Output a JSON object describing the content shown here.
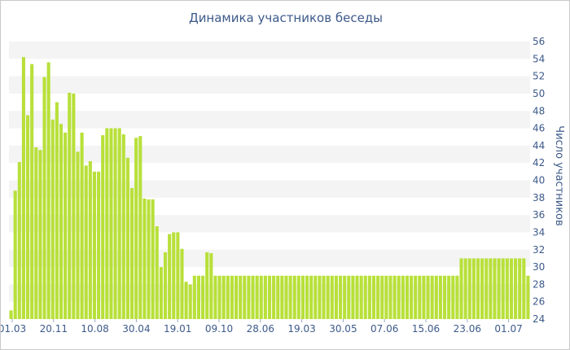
{
  "chart_data": {
    "type": "bar",
    "title": "Динамика участников беседы",
    "ylabel": "Число участников",
    "ylim": [
      24,
      56
    ],
    "y_ticks": [
      24,
      26,
      28,
      30,
      32,
      34,
      36,
      38,
      40,
      42,
      44,
      46,
      48,
      50,
      52,
      54,
      56
    ],
    "x_tick_labels": [
      "01.03",
      "20.11",
      "10.08",
      "30.04",
      "19.01",
      "09.10",
      "28.06",
      "19.03",
      "30.05",
      "07.06",
      "15.06",
      "23.06",
      "01.07"
    ],
    "bar_color": "#b8e03a",
    "grid": "alternating horizontal bands",
    "values": [
      25,
      38.8,
      42.1,
      54.2,
      47.5,
      53.4,
      43.8,
      43.5,
      51.9,
      53.6,
      47.0,
      49.0,
      46.5,
      45.5,
      50.1,
      50.0,
      43.3,
      45.5,
      41.7,
      42.2,
      41.0,
      41.0,
      45.2,
      46.0,
      46.0,
      46.0,
      46.0,
      45.3,
      42.6,
      39.1,
      44.9,
      45.1,
      37.9,
      37.8,
      37.8,
      34.7,
      30.0,
      31.7,
      33.8,
      34.0,
      34.0,
      32.1,
      28.3,
      28.0,
      29.0,
      29.0,
      29.0,
      31.7,
      31.6,
      29,
      29,
      29,
      29,
      29,
      29,
      29,
      29,
      29,
      29,
      29,
      29,
      29,
      29,
      29,
      29,
      29,
      29,
      29,
      29,
      29,
      29,
      29,
      29,
      29,
      29,
      29,
      29,
      29,
      29,
      29,
      29,
      29,
      29,
      29,
      29,
      29,
      29,
      29,
      29,
      29,
      29,
      29,
      29,
      29,
      29,
      29,
      29,
      29,
      29,
      29,
      29,
      29,
      29,
      29,
      29,
      29,
      29,
      29,
      31,
      31,
      31,
      31,
      31,
      31,
      31,
      31,
      31,
      31,
      31,
      31,
      31,
      31,
      31,
      31,
      29
    ]
  }
}
